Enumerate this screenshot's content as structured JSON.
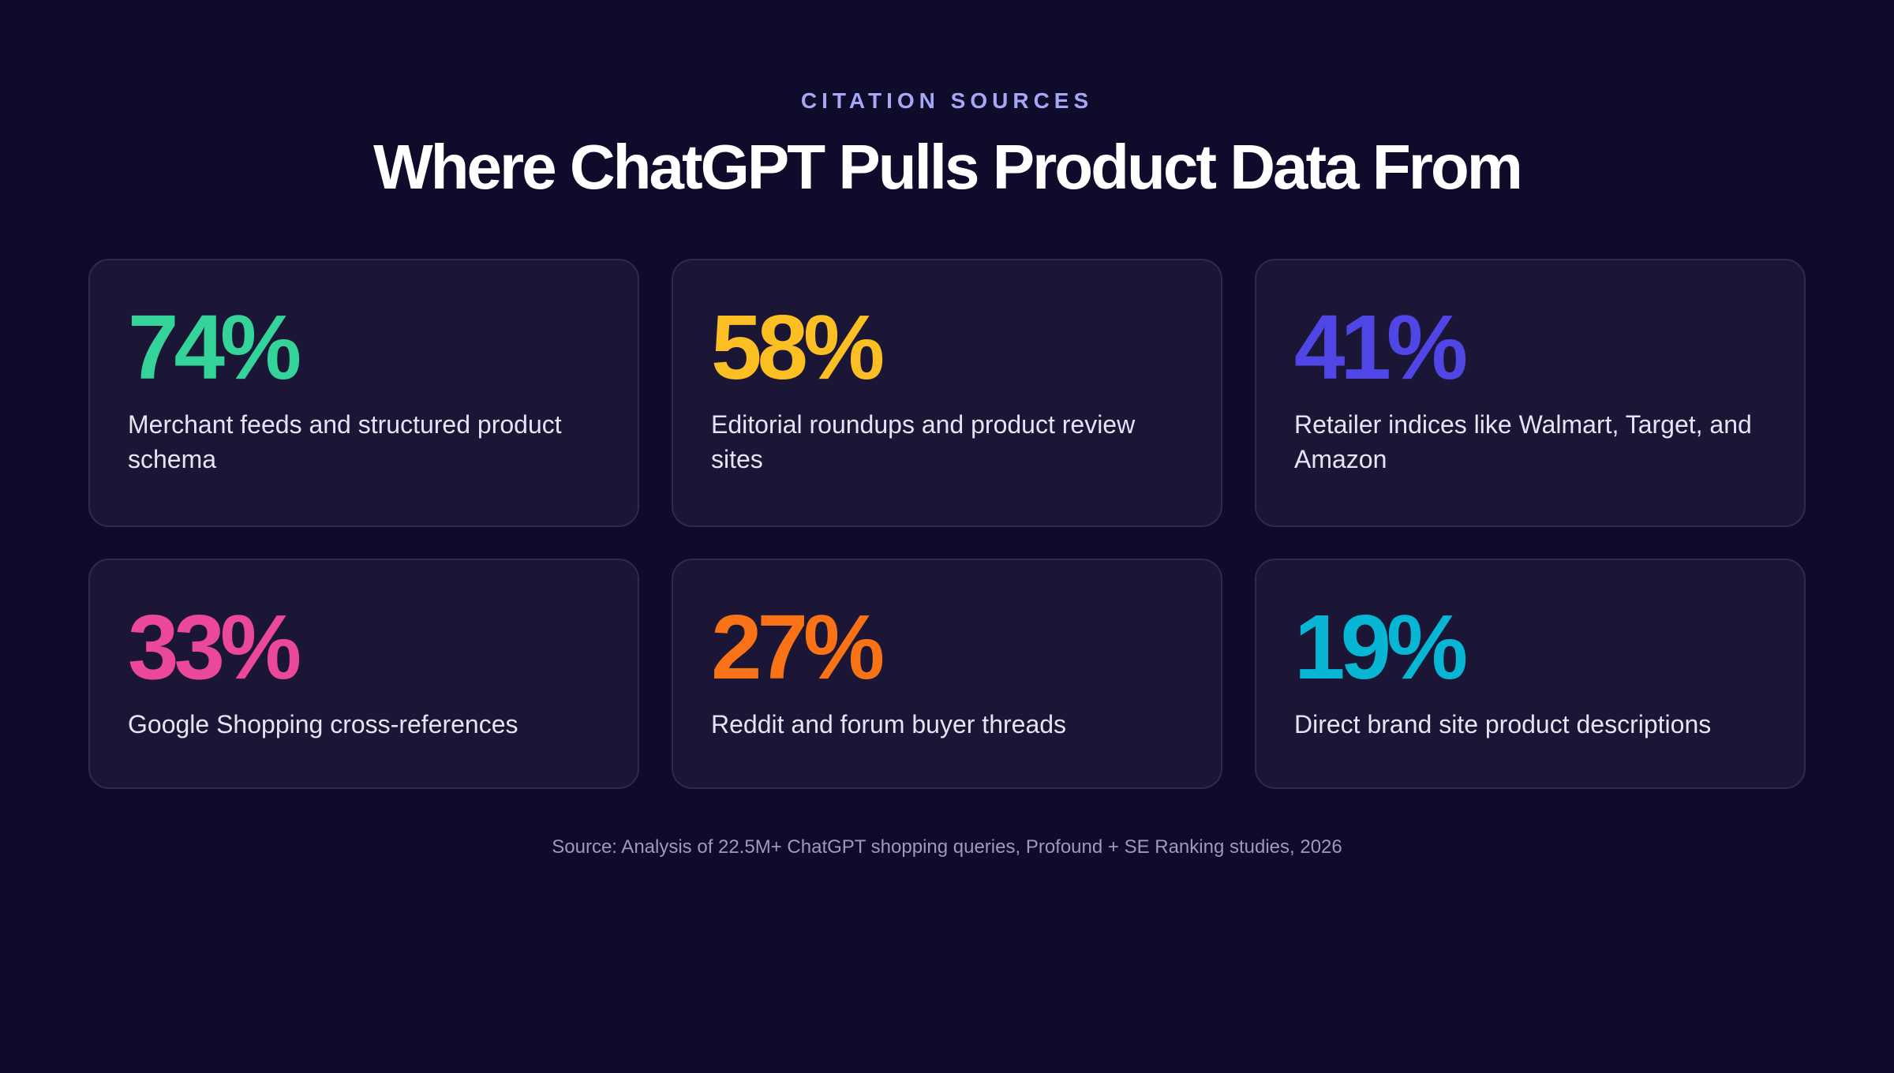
{
  "header": {
    "eyebrow": "CITATION SOURCES",
    "title": "Where ChatGPT Pulls Product Data From"
  },
  "stats": [
    {
      "value": "74%",
      "label": "Merchant feeds and structured product schema",
      "color": "#34d399"
    },
    {
      "value": "58%",
      "label": "Editorial roundups and product review sites",
      "color": "#fbbf24"
    },
    {
      "value": "41%",
      "label": "Retailer indices like Walmart, Target, and Amazon",
      "color": "#4f46e5"
    },
    {
      "value": "33%",
      "label": "Google Shopping cross-references",
      "color": "#ec4899"
    },
    {
      "value": "27%",
      "label": "Reddit and forum buyer threads",
      "color": "#f97316"
    },
    {
      "value": "19%",
      "label": "Direct brand site product descriptions",
      "color": "#06b6d4"
    }
  ],
  "footer": {
    "source": "Source: Analysis of 22.5M+ ChatGPT shopping queries, Profound + SE Ranking studies, 2026"
  },
  "colors": {
    "background": "#0f0b2b",
    "card": "#1b1635",
    "eyebrow": "#a4a8f5"
  }
}
